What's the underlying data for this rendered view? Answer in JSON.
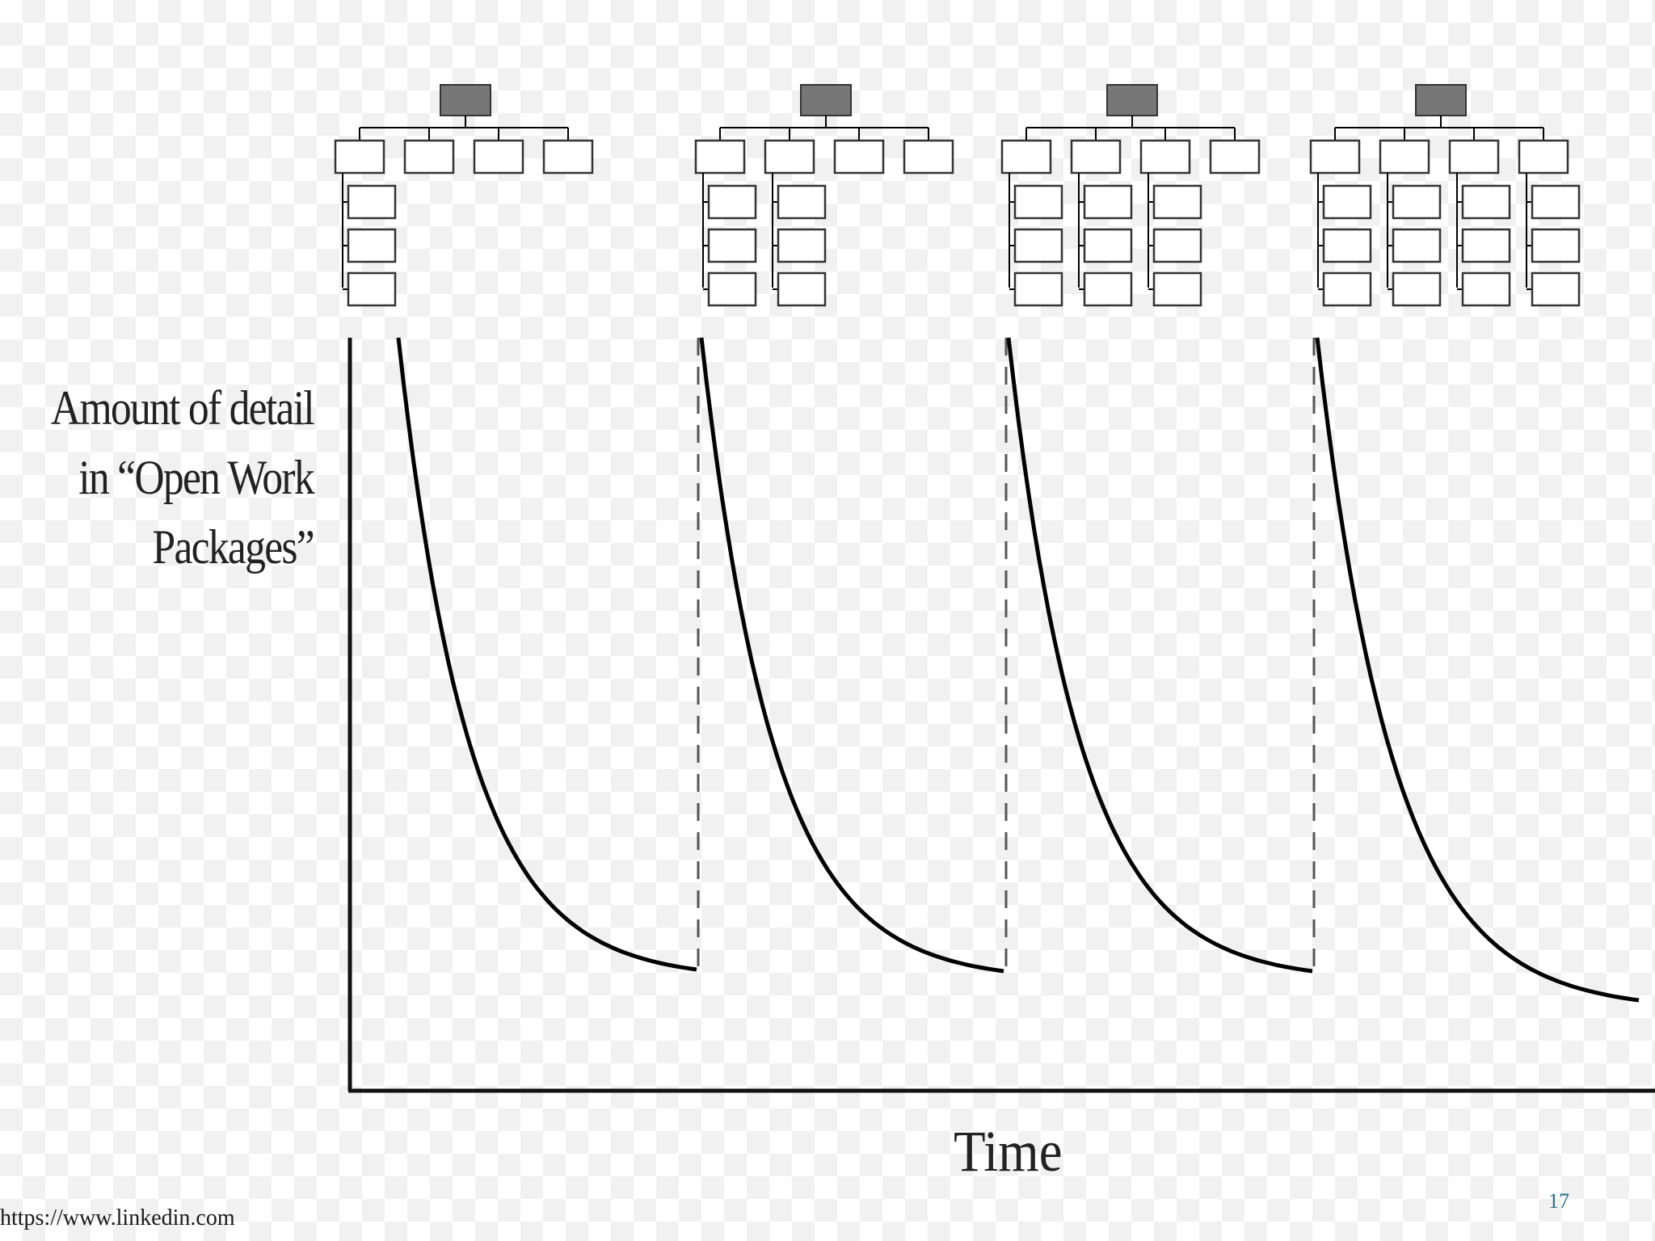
{
  "diagram": {
    "y_axis_label": [
      "Amount of detail",
      "in “Open Work",
      "Packages”"
    ],
    "x_axis_label": "Time",
    "stages": [
      {
        "expanded_branches": 1
      },
      {
        "expanded_branches": 2
      },
      {
        "expanded_branches": 3
      },
      {
        "expanded_branches": 4
      }
    ],
    "colors": {
      "root_box": "#777777",
      "lines": "#000000",
      "boxes_outline": "#333333"
    }
  },
  "footer": {
    "source": "https://www.linkedin.com",
    "page_number": "17"
  }
}
